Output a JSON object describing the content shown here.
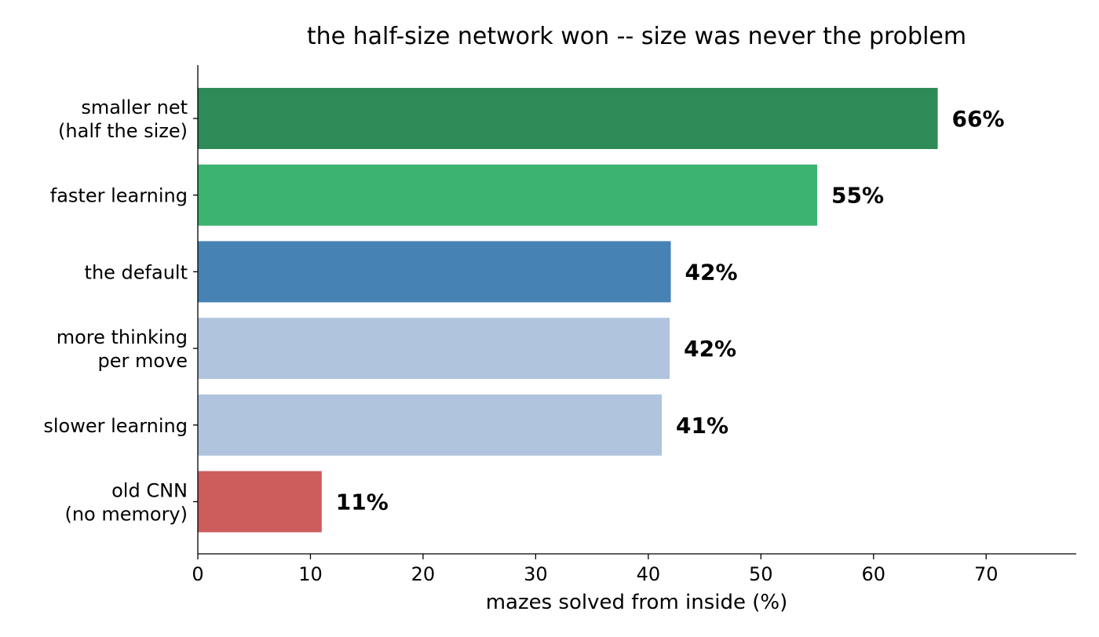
{
  "chart_data": {
    "type": "bar",
    "orientation": "horizontal",
    "title": "the half-size network won -- size was never the problem",
    "xlabel": "mazes solved from inside (%)",
    "ylabel": "",
    "xlim": [
      0,
      78
    ],
    "xticks": [
      0,
      10,
      20,
      30,
      40,
      50,
      60,
      70
    ],
    "grid": false,
    "categories": [
      [
        "smaller net",
        "(half the size)"
      ],
      [
        "faster learning"
      ],
      [
        "the default"
      ],
      [
        "more thinking",
        "per move"
      ],
      [
        "slower learning"
      ],
      [
        "old CNN",
        "(no memory)"
      ]
    ],
    "values": [
      65.7,
      55.0,
      42.0,
      41.9,
      41.2,
      11.0
    ],
    "value_labels": [
      "66%",
      "55%",
      "42%",
      "42%",
      "41%",
      "11%"
    ],
    "colors": [
      "#2e8b57",
      "#3cb371",
      "#4682b4",
      "#b0c4de",
      "#b0c4de",
      "#cd5c5c"
    ]
  }
}
